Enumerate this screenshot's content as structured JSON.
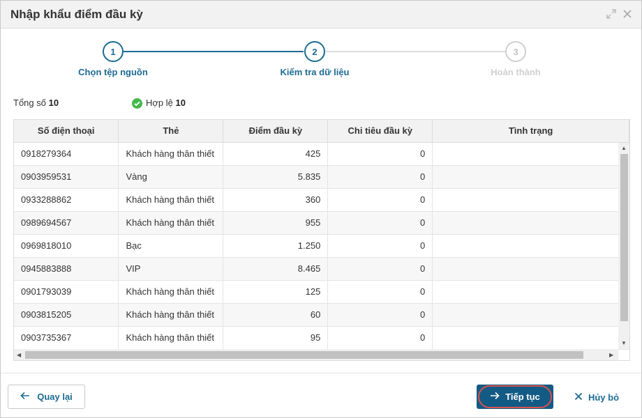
{
  "dialog": {
    "title": "Nhập khẩu điểm đầu kỳ"
  },
  "steps": [
    {
      "number": "1",
      "label": "Chọn tệp nguồn",
      "state": "done"
    },
    {
      "number": "2",
      "label": "Kiểm tra dữ liệu",
      "state": "active"
    },
    {
      "number": "3",
      "label": "Hoàn thành",
      "state": "todo"
    }
  ],
  "summary": {
    "total_label": "Tổng số",
    "total_value": "10",
    "valid_label": "Hợp lệ",
    "valid_value": "10"
  },
  "table": {
    "columns": [
      "Số điện thoại",
      "Thẻ",
      "Điểm đầu kỳ",
      "Chi tiêu đầu kỳ",
      "Tình trạng"
    ],
    "rows": [
      [
        "0918279364",
        "Khách hàng thân thiết",
        "425",
        "0",
        ""
      ],
      [
        "0903959531",
        "Vàng",
        "5.835",
        "0",
        ""
      ],
      [
        "0933288862",
        "Khách hàng thân thiết",
        "360",
        "0",
        ""
      ],
      [
        "0989694567",
        "Khách hàng thân thiết",
        "955",
        "0",
        ""
      ],
      [
        "0969818010",
        "Bạc",
        "1.250",
        "0",
        ""
      ],
      [
        "0945883888",
        "VIP",
        "8.465",
        "0",
        ""
      ],
      [
        "0901793039",
        "Khách hàng thân thiết",
        "125",
        "0",
        ""
      ],
      [
        "0903815205",
        "Khách hàng thân thiết",
        "60",
        "0",
        ""
      ],
      [
        "0903735367",
        "Khách hàng thân thiết",
        "95",
        "0",
        ""
      ]
    ]
  },
  "footer": {
    "back_label": "Quay lại",
    "next_label": "Tiếp tục",
    "cancel_label": "Hủy bỏ"
  },
  "colors": {
    "primary": "#1c6a92",
    "primary_button": "#135b84",
    "success": "#43b94a",
    "highlight_ring": "#d9534f",
    "inactive": "#cfcfcf"
  }
}
